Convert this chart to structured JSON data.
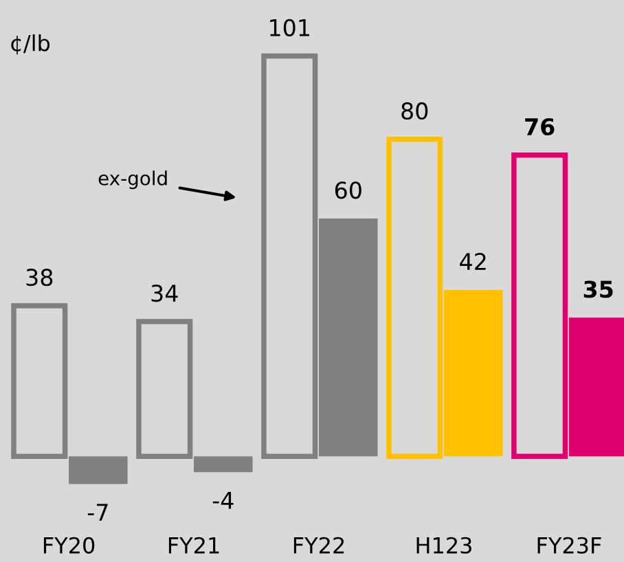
{
  "chart_data": {
    "type": "bar",
    "ylabel": "¢/lb",
    "categories": [
      "FY20",
      "FY21",
      "FY22",
      "H123",
      "FY23F"
    ],
    "series": [
      {
        "colors": [
          "#808080",
          "#808080",
          "#808080",
          "#ffc000",
          "#e0006e"
        ],
        "values": [
          38,
          34,
          101,
          80,
          76
        ]
      },
      {
        "colors": [
          "#808080",
          "#808080",
          "#808080",
          "#ffc000",
          "#e0006e"
        ],
        "values": [
          -7,
          -4,
          60,
          42,
          35
        ]
      }
    ],
    "data_labels": true,
    "grid": false,
    "legend": false,
    "annotations": [
      "ex-gold"
    ]
  }
}
